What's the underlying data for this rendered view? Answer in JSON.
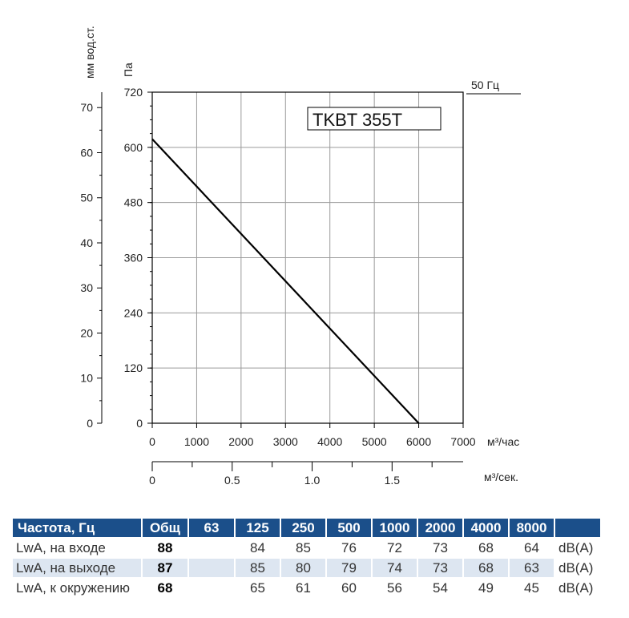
{
  "chart_data": {
    "type": "line",
    "title": "TKBT 355T",
    "frequency_label": "50 Гц",
    "y_left_label": "мм вод.ст.",
    "y_right_label": "Па",
    "x_label": "м³/час",
    "x2_label": "м³/сек.",
    "x_ticks": [
      "0",
      "1000",
      "2000",
      "3000",
      "4000",
      "5000",
      "6000",
      "7000"
    ],
    "x2_ticks": [
      "0",
      "0.5",
      "1.0",
      "1.5"
    ],
    "y_pa_ticks": [
      "0",
      "120",
      "240",
      "360",
      "480",
      "600",
      "720"
    ],
    "y_mm_ticks": [
      "0",
      "10",
      "20",
      "30",
      "40",
      "50",
      "60",
      "70"
    ],
    "xlim": [
      0,
      7000
    ],
    "ylim": [
      0,
      720
    ],
    "grid": true,
    "series": [
      {
        "x": [
          0,
          6000
        ],
        "y": [
          618,
          0
        ],
        "color": "#000000"
      }
    ]
  },
  "table": {
    "header": [
      "Частота, Гц",
      "Общ",
      "63",
      "125",
      "250",
      "500",
      "1000",
      "2000",
      "4000",
      "8000"
    ],
    "rows": [
      {
        "label": "LwA, на входе",
        "total": "88",
        "values": [
          "",
          "84",
          "85",
          "76",
          "72",
          "73",
          "68",
          "64"
        ],
        "unit": "dB(A)"
      },
      {
        "label": "LwA, на выходе",
        "total": "87",
        "values": [
          "",
          "85",
          "80",
          "79",
          "74",
          "73",
          "68",
          "63"
        ],
        "unit": "dB(A)"
      },
      {
        "label": "LwA, к окружению",
        "total": "68",
        "values": [
          "",
          "65",
          "61",
          "60",
          "56",
          "54",
          "49",
          "45"
        ],
        "unit": "dB(A)"
      }
    ]
  }
}
